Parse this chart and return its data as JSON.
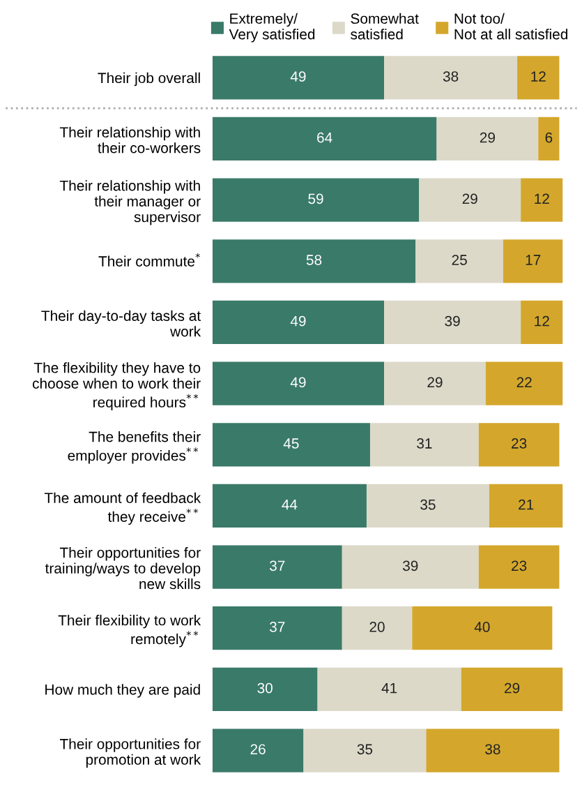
{
  "chart_data": {
    "type": "bar",
    "orientation": "horizontal",
    "stacked": true,
    "data_labels": true,
    "legend": "top",
    "tick_labels": "y",
    "grid": false,
    "categories": [
      "Their job overall",
      "Their relationship with\ntheir co-workers",
      "Their relationship with\ntheir manager or\nsupervisor",
      "Their commute$^{*}$",
      "Their day-to-day tasks at\nwork",
      "The flexibility they have to\nchoose when to work their\nrequired hours$^{**}$",
      "The benefits their\nemployer provides$^{**}$",
      "The amount of feedback\nthey receive$^{**}$",
      "Their opportunities for\ntraining/ways to develop\nnew skills",
      "Their flexibility to work\nremotely$^{**}$",
      "How much they are paid",
      "Their opportunities for\npromotion at work"
    ],
    "xlim": [
      0,
      100
    ],
    "series": [
      {
        "name": "Extremely/\nVery satisfied",
        "color": "#3a7a68",
        "values": [
          49,
          64,
          59,
          58,
          49,
          49,
          45,
          44,
          37,
          37,
          30,
          26
        ]
      },
      {
        "name": "Somewhat\nsatisfied",
        "color": "#dcd9c9",
        "values": [
          38,
          29,
          29,
          25,
          39,
          29,
          31,
          35,
          39,
          20,
          41,
          35
        ]
      },
      {
        "name": "Not too/\nNot at all satisfied",
        "color": "#d4a72c",
        "values": [
          12,
          6,
          12,
          17,
          12,
          22,
          23,
          21,
          23,
          40,
          29,
          38
        ]
      }
    ]
  }
}
